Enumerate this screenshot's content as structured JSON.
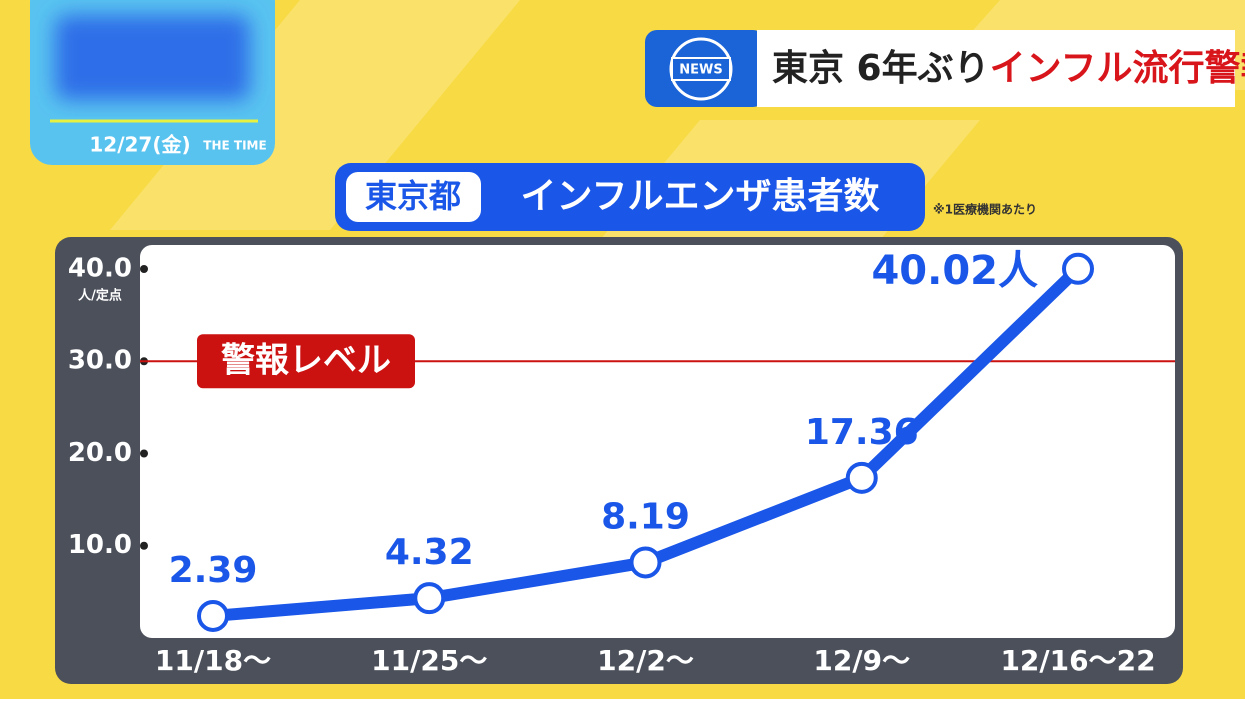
{
  "header": {
    "date": "12/27(金)",
    "program": "THE TIME",
    "news_badge": "NEWS",
    "headline_lead": "東京 6年ぶり",
    "headline_em": "インフル流行警報",
    "region": "東京都",
    "note": "※1医療機関あたり"
  },
  "chart_data": {
    "type": "line",
    "title": "インフルエンザ患者数",
    "y_unit": "人/定点",
    "categories": [
      "11/18〜",
      "11/25〜",
      "12/2〜",
      "12/9〜",
      "12/16〜22"
    ],
    "values": [
      2.39,
      4.32,
      8.19,
      17.36,
      40.02
    ],
    "value_labels": [
      "2.39",
      "4.32",
      "8.19",
      "17.36",
      "40.02人"
    ],
    "color": "#1a56e8",
    "ylim": [
      0,
      42.6
    ],
    "yticks": [
      {
        "value": 10,
        "label": "10.0"
      },
      {
        "value": 20,
        "label": "20.0"
      },
      {
        "value": 30,
        "label": "30.0"
      },
      {
        "value": 40,
        "label": "40.0"
      }
    ],
    "threshold": {
      "value": 30,
      "label": "警報レベル",
      "color": "#cc1111"
    }
  }
}
